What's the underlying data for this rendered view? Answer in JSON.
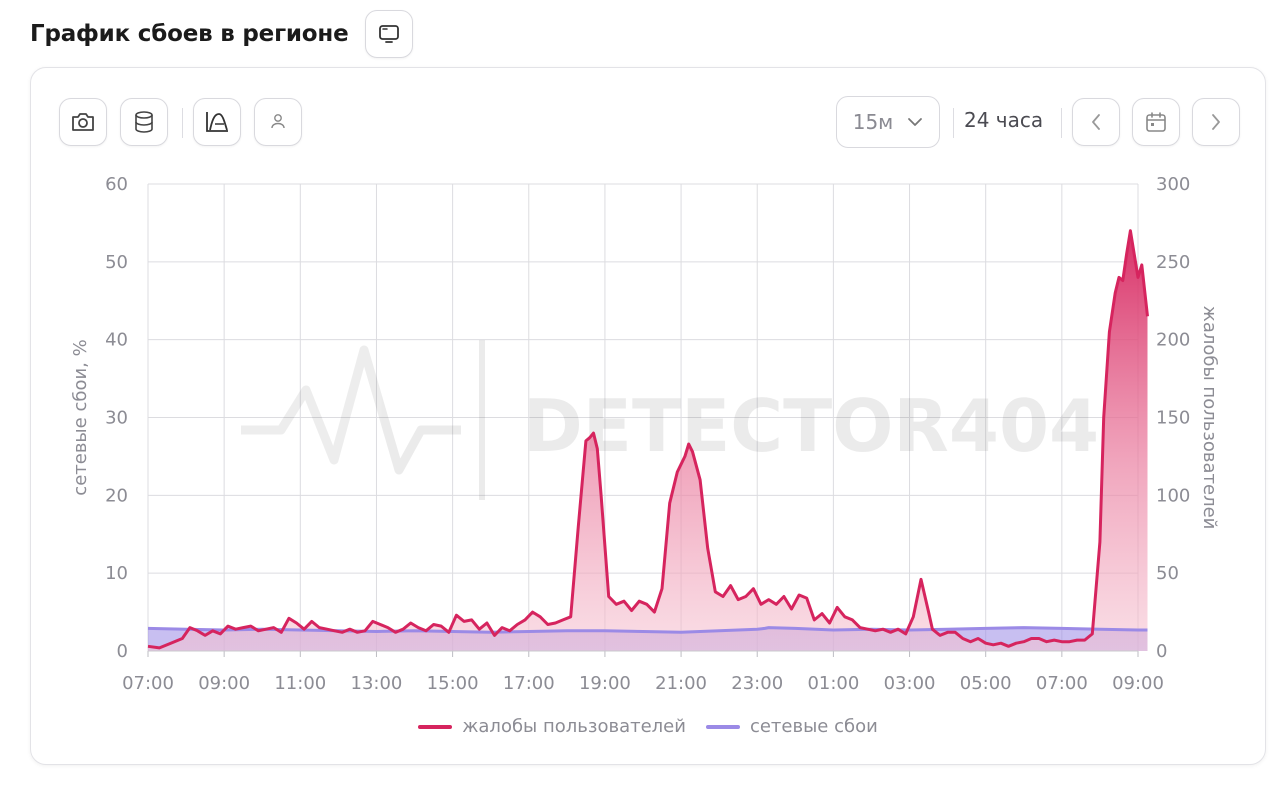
{
  "header": {
    "title": "График сбоев в регионе",
    "tv_icon": "tv-icon"
  },
  "toolbar": {
    "tools": [
      {
        "icon": "camera-icon"
      },
      {
        "icon": "database-icon"
      },
      {
        "icon": "chart-area-icon"
      },
      {
        "icon": "person-icon"
      }
    ],
    "interval": "15м",
    "period": "24 часа",
    "prev_icon": "chevron-left-icon",
    "calendar_icon": "calendar-icon",
    "next_icon": "chevron-right-icon"
  },
  "watermark": "DETECTOR404",
  "colors": {
    "complaints": "#d6245e",
    "network": "#9b8ae6",
    "grid": "#dcdce0"
  },
  "chart_data": {
    "type": "area",
    "x_tick_labels": [
      "07:00",
      "09:00",
      "11:00",
      "13:00",
      "15:00",
      "17:00",
      "19:00",
      "21:00",
      "23:00",
      "01:00",
      "03:00",
      "05:00",
      "07:00",
      "09:00"
    ],
    "x_range_hours": [
      0,
      26
    ],
    "x_unit": "hours since 07:00",
    "y_left": {
      "label": "сетевые сбои, %",
      "range": [
        0,
        60
      ],
      "ticks": [
        0,
        10,
        20,
        30,
        40,
        50,
        60
      ]
    },
    "y_right": {
      "label": "жалобы пользователей",
      "range": [
        0,
        300
      ],
      "ticks": [
        0,
        50,
        100,
        150,
        200,
        250,
        300
      ]
    },
    "legend_position": "bottom",
    "grid": true,
    "series": [
      {
        "name": "жалобы пользователей",
        "axis": "right",
        "points": [
          [
            0.0,
            3
          ],
          [
            0.3,
            2
          ],
          [
            0.6,
            5
          ],
          [
            0.9,
            8
          ],
          [
            1.1,
            15
          ],
          [
            1.3,
            13
          ],
          [
            1.5,
            10
          ],
          [
            1.7,
            13
          ],
          [
            1.9,
            11
          ],
          [
            2.1,
            16
          ],
          [
            2.3,
            14
          ],
          [
            2.5,
            15
          ],
          [
            2.7,
            16
          ],
          [
            2.9,
            13
          ],
          [
            3.1,
            14
          ],
          [
            3.3,
            15
          ],
          [
            3.5,
            12
          ],
          [
            3.7,
            21
          ],
          [
            3.9,
            18
          ],
          [
            4.1,
            14
          ],
          [
            4.3,
            19
          ],
          [
            4.5,
            15
          ],
          [
            4.7,
            14
          ],
          [
            4.9,
            13
          ],
          [
            5.1,
            12
          ],
          [
            5.3,
            14
          ],
          [
            5.5,
            12
          ],
          [
            5.7,
            13
          ],
          [
            5.9,
            19
          ],
          [
            6.1,
            17
          ],
          [
            6.3,
            15
          ],
          [
            6.5,
            12
          ],
          [
            6.7,
            14
          ],
          [
            6.9,
            18
          ],
          [
            7.1,
            15
          ],
          [
            7.3,
            13
          ],
          [
            7.5,
            17
          ],
          [
            7.7,
            16
          ],
          [
            7.9,
            12
          ],
          [
            8.1,
            23
          ],
          [
            8.3,
            19
          ],
          [
            8.5,
            20
          ],
          [
            8.7,
            14
          ],
          [
            8.9,
            18
          ],
          [
            9.1,
            10
          ],
          [
            9.3,
            15
          ],
          [
            9.5,
            13
          ],
          [
            9.7,
            17
          ],
          [
            9.9,
            20
          ],
          [
            10.1,
            25
          ],
          [
            10.3,
            22
          ],
          [
            10.5,
            17
          ],
          [
            10.7,
            18
          ],
          [
            10.9,
            20
          ],
          [
            11.1,
            22
          ],
          [
            11.3,
            80
          ],
          [
            11.5,
            135
          ],
          [
            11.6,
            137
          ],
          [
            11.7,
            140
          ],
          [
            11.8,
            130
          ],
          [
            11.9,
            100
          ],
          [
            12.1,
            35
          ],
          [
            12.3,
            30
          ],
          [
            12.5,
            32
          ],
          [
            12.7,
            26
          ],
          [
            12.9,
            32
          ],
          [
            13.1,
            30
          ],
          [
            13.3,
            25
          ],
          [
            13.5,
            40
          ],
          [
            13.7,
            95
          ],
          [
            13.9,
            115
          ],
          [
            14.0,
            120
          ],
          [
            14.1,
            125
          ],
          [
            14.2,
            133
          ],
          [
            14.3,
            128
          ],
          [
            14.5,
            110
          ],
          [
            14.7,
            66
          ],
          [
            14.9,
            38
          ],
          [
            15.1,
            35
          ],
          [
            15.3,
            42
          ],
          [
            15.5,
            33
          ],
          [
            15.7,
            35
          ],
          [
            15.9,
            40
          ],
          [
            16.1,
            30
          ],
          [
            16.3,
            33
          ],
          [
            16.5,
            30
          ],
          [
            16.7,
            35
          ],
          [
            16.9,
            27
          ],
          [
            17.1,
            36
          ],
          [
            17.3,
            34
          ],
          [
            17.5,
            20
          ],
          [
            17.7,
            24
          ],
          [
            17.9,
            18
          ],
          [
            18.1,
            28
          ],
          [
            18.3,
            22
          ],
          [
            18.5,
            20
          ],
          [
            18.7,
            15
          ],
          [
            18.9,
            14
          ],
          [
            19.1,
            13
          ],
          [
            19.3,
            14
          ],
          [
            19.5,
            12
          ],
          [
            19.7,
            14
          ],
          [
            19.9,
            11
          ],
          [
            20.1,
            22
          ],
          [
            20.3,
            46
          ],
          [
            20.5,
            25
          ],
          [
            20.6,
            14
          ],
          [
            20.8,
            10
          ],
          [
            21.0,
            12
          ],
          [
            21.2,
            12
          ],
          [
            21.4,
            8
          ],
          [
            21.6,
            6
          ],
          [
            21.8,
            8
          ],
          [
            22.0,
            5
          ],
          [
            22.2,
            4
          ],
          [
            22.4,
            5
          ],
          [
            22.6,
            3
          ],
          [
            22.8,
            5
          ],
          [
            23.0,
            6
          ],
          [
            23.2,
            8
          ],
          [
            23.4,
            8
          ],
          [
            23.6,
            6
          ],
          [
            23.8,
            7
          ],
          [
            24.0,
            6
          ],
          [
            24.2,
            6
          ],
          [
            24.4,
            7
          ],
          [
            24.6,
            7
          ],
          [
            24.8,
            11
          ],
          [
            25.0,
            70
          ],
          [
            25.1,
            150
          ],
          [
            25.25,
            205
          ],
          [
            25.4,
            230
          ],
          [
            25.5,
            240
          ],
          [
            25.6,
            238
          ],
          [
            25.7,
            255
          ],
          [
            25.8,
            270
          ],
          [
            25.9,
            255
          ],
          [
            26.0,
            240
          ],
          [
            26.1,
            248
          ],
          [
            26.25,
            215
          ]
        ]
      },
      {
        "name": "сетевые сбои",
        "axis": "left",
        "points": [
          [
            0.0,
            2.9
          ],
          [
            1.0,
            2.8
          ],
          [
            2.0,
            2.7
          ],
          [
            3.0,
            2.8
          ],
          [
            4.0,
            2.7
          ],
          [
            5.0,
            2.6
          ],
          [
            6.0,
            2.5
          ],
          [
            7.0,
            2.6
          ],
          [
            8.0,
            2.5
          ],
          [
            9.0,
            2.4
          ],
          [
            10.0,
            2.5
          ],
          [
            11.0,
            2.6
          ],
          [
            12.0,
            2.6
          ],
          [
            13.0,
            2.5
          ],
          [
            14.0,
            2.4
          ],
          [
            15.0,
            2.6
          ],
          [
            16.0,
            2.8
          ],
          [
            16.2,
            2.9
          ],
          [
            16.3,
            3.0
          ],
          [
            17.0,
            2.9
          ],
          [
            18.0,
            2.7
          ],
          [
            19.0,
            2.8
          ],
          [
            20.0,
            2.7
          ],
          [
            21.0,
            2.8
          ],
          [
            22.0,
            2.9
          ],
          [
            23.0,
            3.0
          ],
          [
            24.0,
            2.9
          ],
          [
            25.0,
            2.8
          ],
          [
            26.0,
            2.7
          ],
          [
            26.25,
            2.7
          ]
        ]
      }
    ]
  }
}
